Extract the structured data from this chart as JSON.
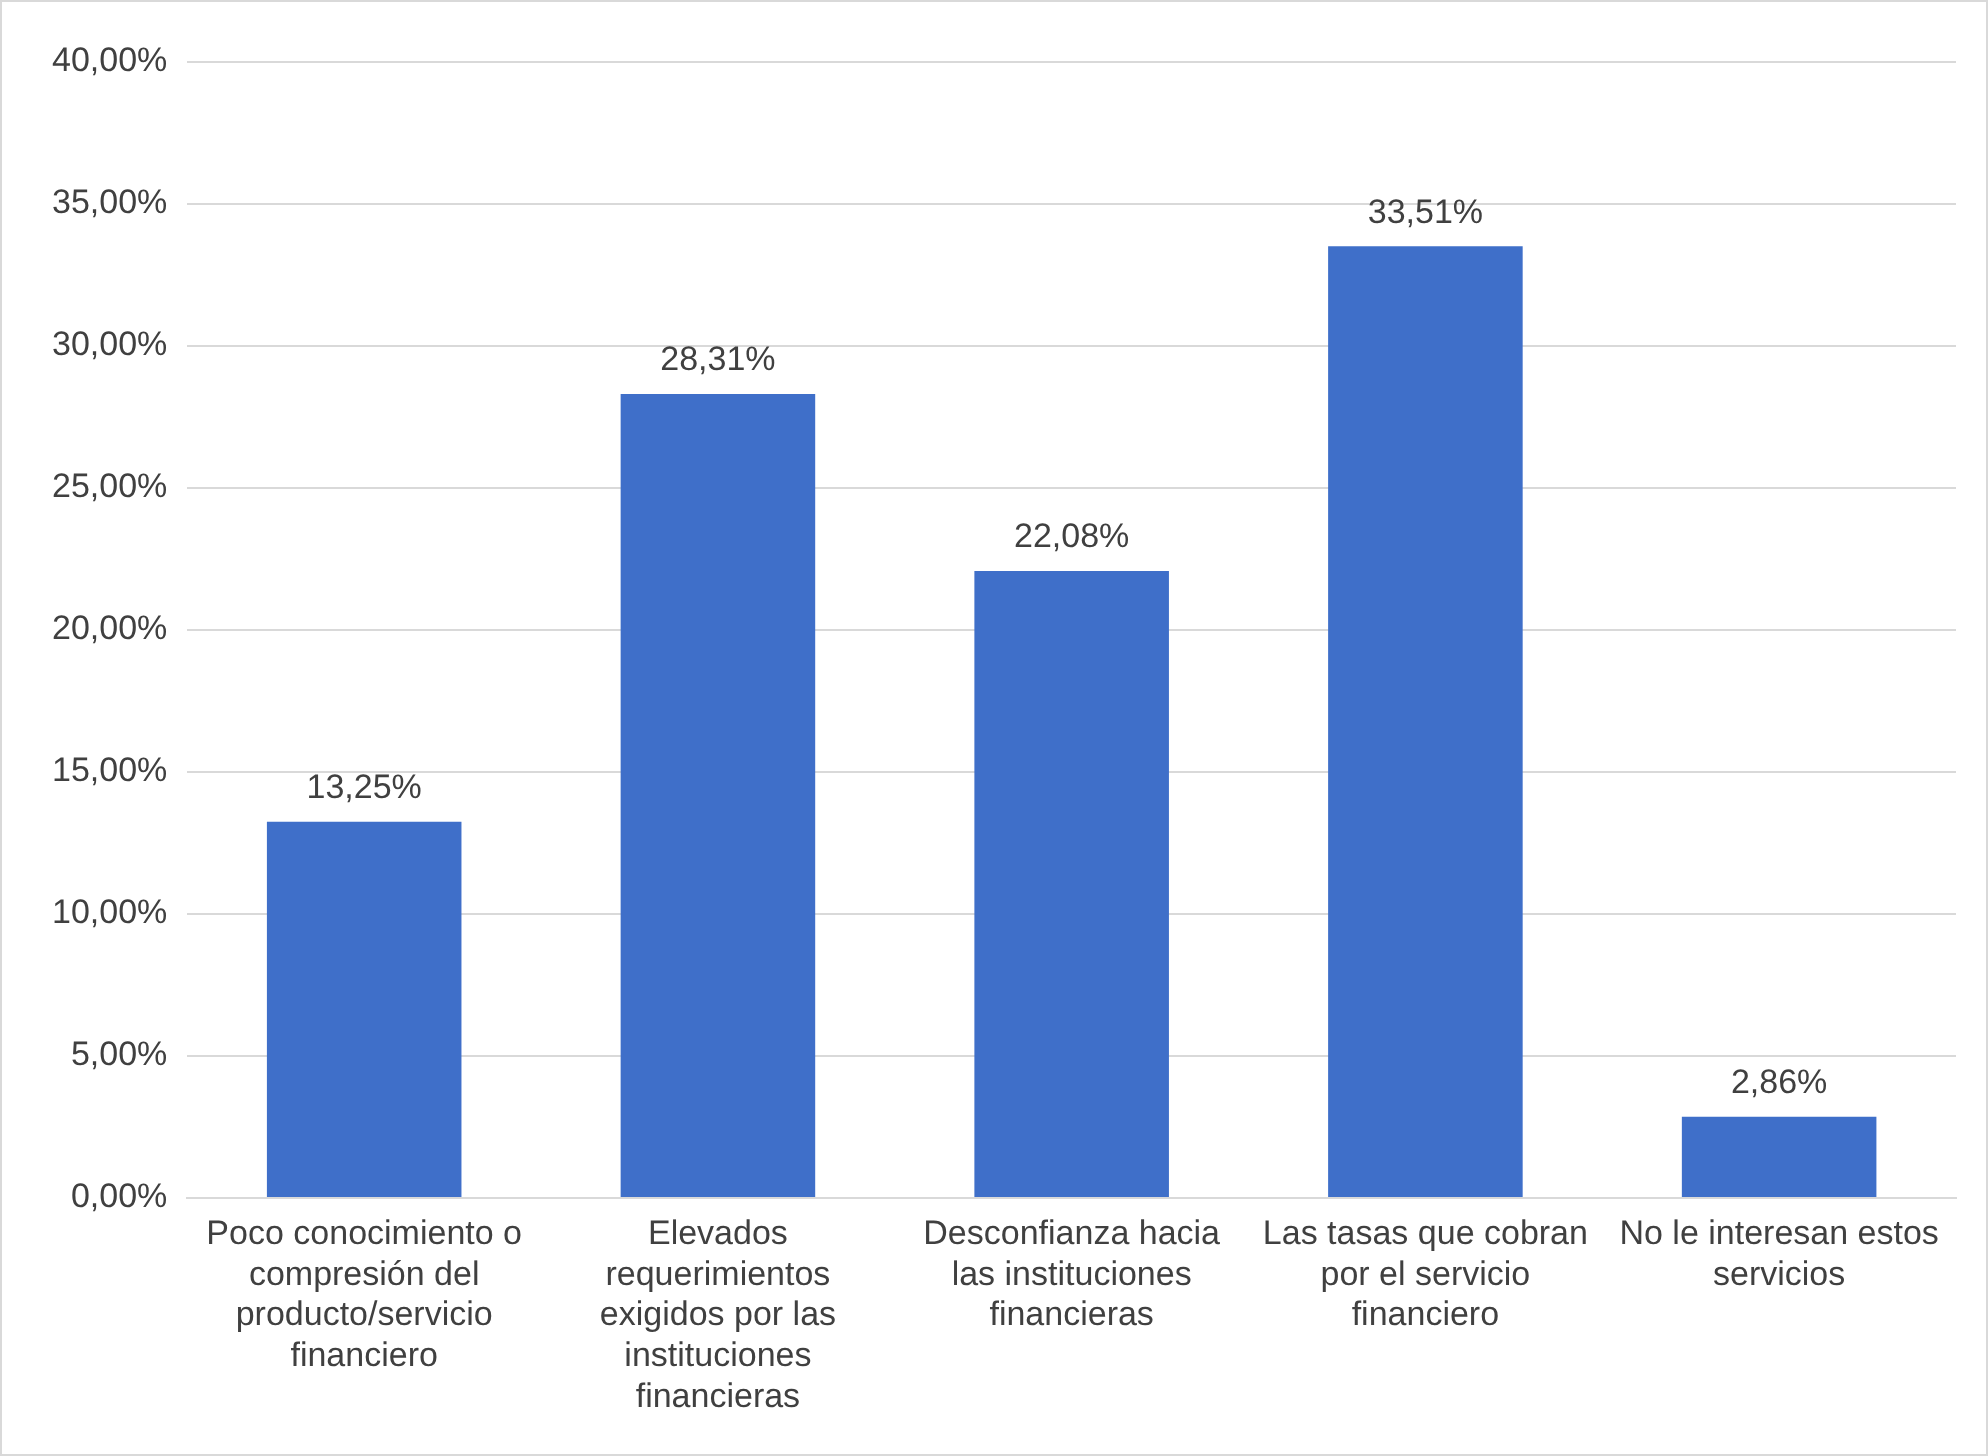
{
  "chart_data": {
    "type": "bar",
    "categories": [
      "Poco conocimiento o compresión del producto/servicio financiero",
      "Elevados requerimientos exigidos por las instituciones financieras",
      "Desconfianza hacia las instituciones financieras",
      "Las tasas que cobran por el servicio financiero",
      "No le interesan estos servicios"
    ],
    "values": [
      13.25,
      28.31,
      22.08,
      33.51,
      2.86
    ],
    "value_labels": [
      "13,25%",
      "28,31%",
      "22,08%",
      "33,51%",
      "2,86%"
    ],
    "color": "#3f6fc9",
    "ylim": [
      0,
      40
    ],
    "yticks": [
      {
        "value": 0,
        "label": "0,00%"
      },
      {
        "value": 5,
        "label": "5,00%"
      },
      {
        "value": 10,
        "label": "10,00%"
      },
      {
        "value": 15,
        "label": "15,00%"
      },
      {
        "value": 20,
        "label": "20,00%"
      },
      {
        "value": 25,
        "label": "25,00%"
      },
      {
        "value": 30,
        "label": "30,00%"
      },
      {
        "value": 35,
        "label": "35,00%"
      },
      {
        "value": 40,
        "label": "40,00%"
      }
    ],
    "grid": "y",
    "legend": false
  }
}
